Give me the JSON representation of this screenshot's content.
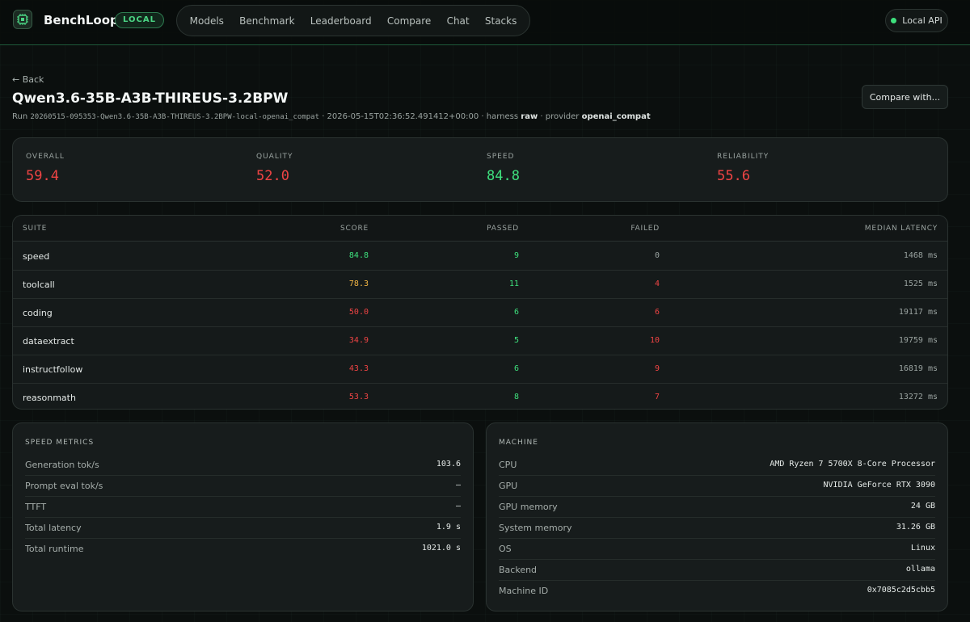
{
  "app": {
    "brand": "BenchLoop",
    "badge": "LOCAL",
    "nav": [
      "Models",
      "Benchmark",
      "Leaderboard",
      "Compare",
      "Chat",
      "Stacks"
    ],
    "api_status": "Local API"
  },
  "header": {
    "back": "← Back",
    "title": "Qwen3.6-35B-A3B-THIREUS-3.2BPW",
    "run_prefix": "Run",
    "run_id": "20260515-095353-Qwen3.6-35B-A3B-THIREUS-3.2BPW-local-openai_compat",
    "timestamp": "· 2026-05-15T02:36:52.491412+00:00 · harness",
    "harness": "raw",
    "provider_prefix": "· provider",
    "provider": "openai_compat",
    "compare_button": "Compare with..."
  },
  "scores": [
    {
      "label": "OVERALL",
      "value": "59.4",
      "color": "#ef4444"
    },
    {
      "label": "QUALITY",
      "value": "52.0",
      "color": "#ef4444"
    },
    {
      "label": "SPEED",
      "value": "84.8",
      "color": "#3ee07d"
    },
    {
      "label": "RELIABILITY",
      "value": "55.6",
      "color": "#ef4444"
    }
  ],
  "table": {
    "headers": [
      "SUITE",
      "SCORE",
      "PASSED",
      "FAILED",
      "MEDIAN LATENCY"
    ],
    "rows": [
      {
        "suite": "speed",
        "score": "84.8",
        "score_color": "#3ee07d",
        "passed": "9",
        "failed": "0",
        "failed_color": "#9aa3a0",
        "latency": "1468 ms"
      },
      {
        "suite": "toolcall",
        "score": "78.3",
        "score_color": "#f2b544",
        "passed": "11",
        "failed": "4",
        "failed_color": "#ef4444",
        "latency": "1525 ms"
      },
      {
        "suite": "coding",
        "score": "50.0",
        "score_color": "#ef4444",
        "passed": "6",
        "failed": "6",
        "failed_color": "#ef4444",
        "latency": "19117 ms"
      },
      {
        "suite": "dataextract",
        "score": "34.9",
        "score_color": "#ef4444",
        "passed": "5",
        "failed": "10",
        "failed_color": "#ef4444",
        "latency": "19759 ms"
      },
      {
        "suite": "instructfollow",
        "score": "43.3",
        "score_color": "#ef4444",
        "passed": "6",
        "failed": "9",
        "failed_color": "#ef4444",
        "latency": "16819 ms"
      },
      {
        "suite": "reasonmath",
        "score": "53.3",
        "score_color": "#ef4444",
        "passed": "8",
        "failed": "7",
        "failed_color": "#ef4444",
        "latency": "13272 ms"
      }
    ],
    "passed_color": "#3ee07d"
  },
  "speed_metrics": {
    "title": "SPEED METRICS",
    "items": [
      {
        "k": "Generation tok/s",
        "v": "103.6"
      },
      {
        "k": "Prompt eval tok/s",
        "v": "—"
      },
      {
        "k": "TTFT",
        "v": "—"
      },
      {
        "k": "Total latency",
        "v": "1.9 s"
      },
      {
        "k": "Total runtime",
        "v": "1021.0 s"
      }
    ]
  },
  "machine": {
    "title": "MACHINE",
    "items": [
      {
        "k": "CPU",
        "v": "AMD Ryzen 7 5700X 8-Core Processor"
      },
      {
        "k": "GPU",
        "v": "NVIDIA GeForce RTX 3090"
      },
      {
        "k": "GPU memory",
        "v": "24 GB"
      },
      {
        "k": "System memory",
        "v": "31.26 GB"
      },
      {
        "k": "OS",
        "v": "Linux"
      },
      {
        "k": "Backend",
        "v": "ollama"
      },
      {
        "k": "Machine ID",
        "v": "0x7085c2d5cbb5"
      }
    ]
  }
}
